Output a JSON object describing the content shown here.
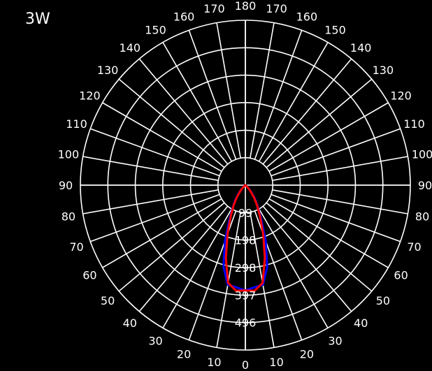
{
  "chart_data": {
    "type": "polar",
    "title": "3W",
    "angle_labels": [
      0,
      10,
      20,
      30,
      40,
      50,
      60,
      70,
      80,
      90,
      100,
      110,
      120,
      130,
      140,
      150,
      160,
      170,
      180
    ],
    "radial_ticks": [
      99,
      198,
      298,
      397,
      496
    ],
    "rmax": 595,
    "grid": true,
    "series": [
      {
        "color": "#0000ff",
        "theta": [
          0,
          5,
          10,
          15,
          20,
          25,
          30,
          35,
          40,
          45,
          50,
          55,
          60
        ],
        "values": [
          380,
          370,
          365,
          305,
          215,
          135,
          90,
          60,
          35,
          18,
          8,
          3,
          0
        ]
      },
      {
        "color": "#ff0000",
        "theta": [
          0,
          5,
          10,
          15,
          20,
          25,
          30,
          35,
          40,
          45,
          50,
          55,
          60
        ],
        "values": [
          380,
          383,
          358,
          272,
          188,
          125,
          85,
          55,
          30,
          15,
          6,
          2,
          0
        ]
      }
    ]
  }
}
